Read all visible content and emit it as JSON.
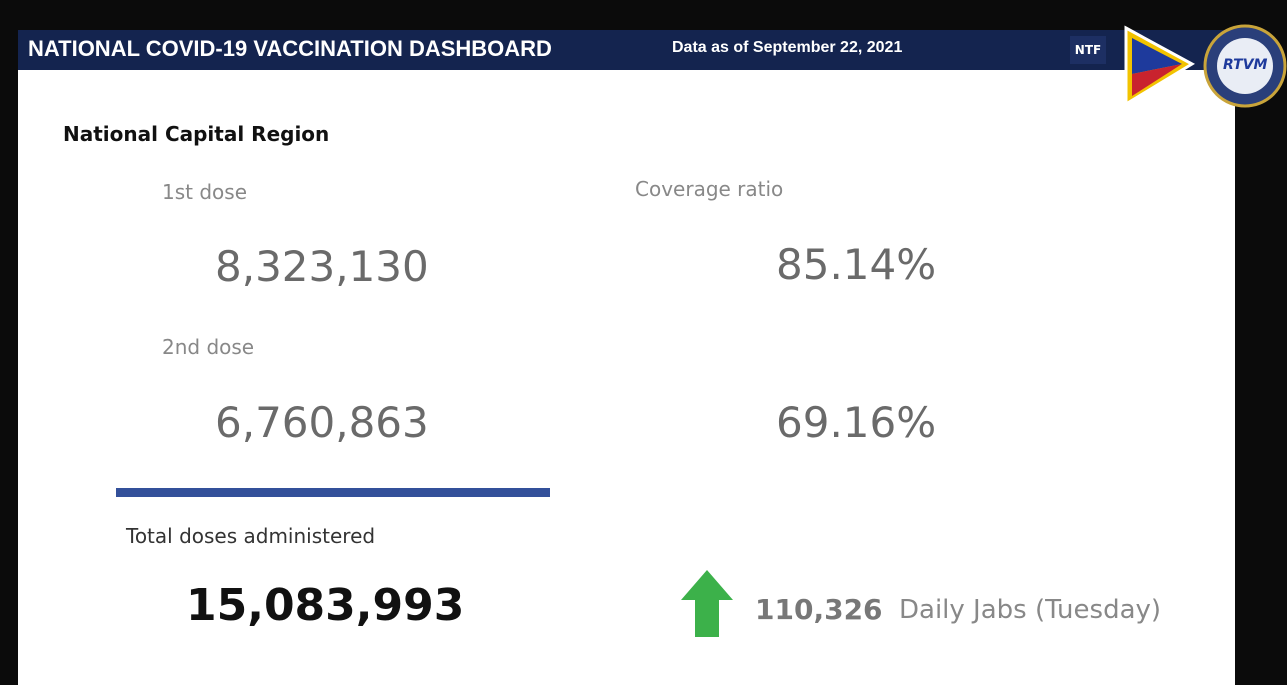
{
  "header": {
    "title": "NATIONAL COVID-19 VACCINATION DASHBOARD",
    "date": "Data as of September 22, 2021",
    "logos": [
      "NTF",
      "RTVM"
    ]
  },
  "region": "National Capital Region",
  "first_dose": {
    "label": "1st dose",
    "value": "8,323,130",
    "coverage": "85.14%"
  },
  "coverage_label": "Coverage ratio",
  "second_dose": {
    "label": "2nd dose",
    "value": "6,760,863",
    "coverage": "69.16%"
  },
  "total": {
    "label": "Total doses administered",
    "value": "15,083,993"
  },
  "daily": {
    "value": "110,326",
    "label": "Daily Jabs (Tuesday)"
  }
}
